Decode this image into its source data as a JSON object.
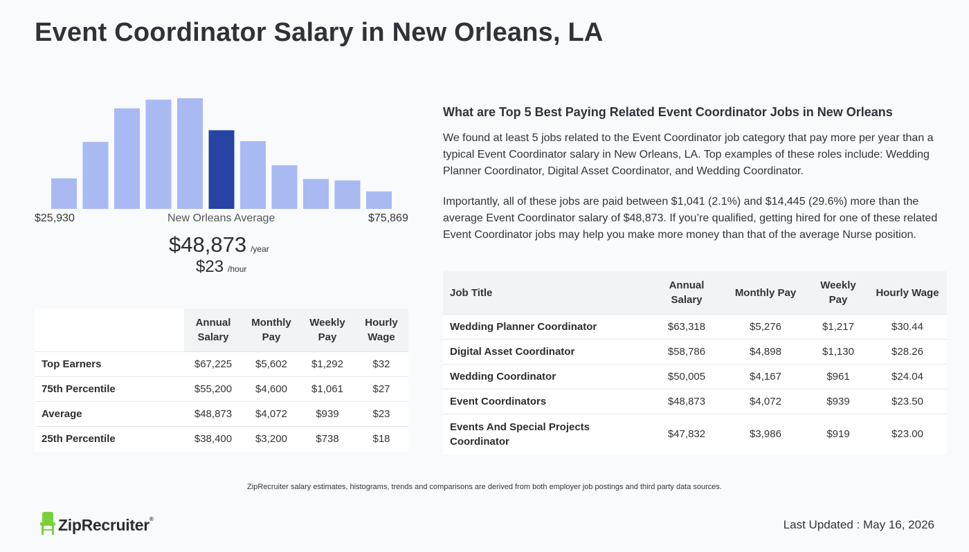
{
  "page_title": "Event Coordinator Salary in New Orleans, LA",
  "histogram": {
    "min_label": "$25,930",
    "max_label": "$75,869",
    "mid_label": "New Orleans Average",
    "bar_color": "#a9b9f2",
    "highlight_color": "#2544a4",
    "highlight_index": 5
  },
  "average": {
    "annual": "$48,873",
    "annual_unit": "/year",
    "hourly": "$23",
    "hourly_unit": "/hour"
  },
  "chart_data": {
    "type": "bar",
    "title": "",
    "xlabel": "",
    "ylabel": "",
    "categories": [
      "1",
      "2",
      "3",
      "4",
      "5",
      "6",
      "7",
      "8",
      "9",
      "10",
      "11"
    ],
    "values": [
      42,
      92,
      138,
      150,
      152,
      108,
      93,
      60,
      41,
      39,
      24
    ],
    "ylim": [
      0,
      152
    ],
    "grid": false
  },
  "percentile_table": {
    "headers": [
      "",
      "Annual Salary",
      "Monthly Pay",
      "Weekly Pay",
      "Hourly Wage"
    ],
    "rows": [
      [
        "Top Earners",
        "$67,225",
        "$5,602",
        "$1,292",
        "$32"
      ],
      [
        "75th Percentile",
        "$55,200",
        "$4,600",
        "$1,061",
        "$27"
      ],
      [
        "Average",
        "$48,873",
        "$4,072",
        "$939",
        "$23"
      ],
      [
        "25th Percentile",
        "$38,400",
        "$3,200",
        "$738",
        "$18"
      ]
    ]
  },
  "related": {
    "heading": "What are Top 5 Best Paying Related Event Coordinator Jobs in New Orleans",
    "paragraph1": "We found at least 5 jobs related to the Event Coordinator job category that pay more per year than a typical Event Coordinator salary in New Orleans, LA. Top examples of these roles include: Wedding Planner Coordinator, Digital Asset Coordinator, and Wedding Coordinator.",
    "paragraph2": "Importantly, all of these jobs are paid between $1,041 (2.1%) and $14,445 (29.6%) more than the average Event Coordinator salary of $48,873. If you’re qualified, getting hired for one of these related Event Coordinator jobs may help you make more money than that of the average Nurse position."
  },
  "jobs_table": {
    "headers": [
      "Job Title",
      "Annual Salary",
      "Monthly Pay",
      "Weekly Pay",
      "Hourly Wage"
    ],
    "rows": [
      [
        "Wedding Planner Coordinator",
        "$63,318",
        "$5,276",
        "$1,217",
        "$30.44"
      ],
      [
        "Digital Asset Coordinator",
        "$58,786",
        "$4,898",
        "$1,130",
        "$28.26"
      ],
      [
        "Wedding Coordinator",
        "$50,005",
        "$4,167",
        "$961",
        "$24.04"
      ],
      [
        "Event Coordinators",
        "$48,873",
        "$4,072",
        "$939",
        "$23.50"
      ],
      [
        "Events And Special Projects Coordinator",
        "$47,832",
        "$3,986",
        "$919",
        "$23.00"
      ]
    ]
  },
  "disclaimer": "ZipRecruiter salary estimates, histograms, trends and comparisons are derived from both employer job postings and third party data sources.",
  "logo": {
    "text": "ZipRecruiter",
    "reg": "®",
    "icon": "chair-icon",
    "icon_color": "#7ad03a"
  },
  "last_updated": "Last Updated : May 16, 2026"
}
